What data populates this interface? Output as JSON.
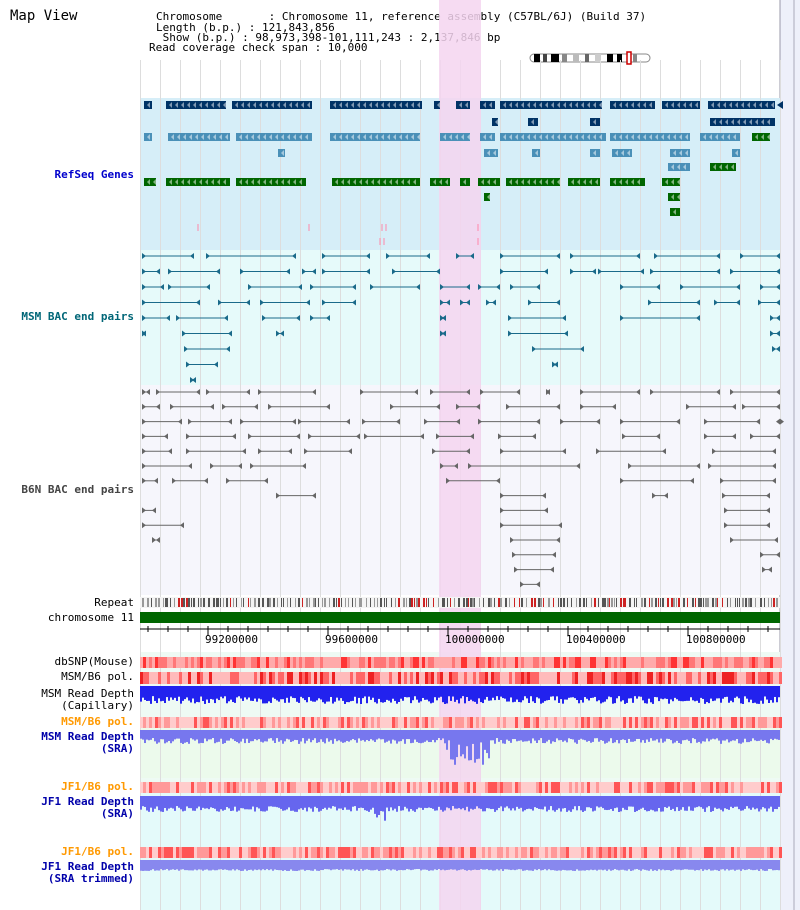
{
  "app": {
    "title": "Map View"
  },
  "header": {
    "chromosome_line": "Chromosome       : Chromosome 11, reference assembly (C57BL/6J) (Build 37)",
    "length_line": "Length (b.p.) : 121,843,856",
    "show_line": " Show (b.p.) : 98,973,398-101,111,243 : 2,137,846 bp",
    "coverage_line": "Read coverage check span : 10,000"
  },
  "tracks": {
    "refseq": "RefSeq Genes",
    "msm_bac": "MSM BAC end pairs",
    "b6n_bac": "B6N BAC end pairs",
    "repeat": "Repeat",
    "chromosome": "chromosome 11",
    "dbsnp": "dbSNP(Mouse)",
    "msm_pol1": "MSM/B6 pol.",
    "msm_depth_cap_1": "MSM Read Depth",
    "msm_depth_cap_2": "(Capillary)",
    "msm_pol2": "MSM/B6 pol.",
    "msm_depth_sra_1": "MSM Read Depth",
    "msm_depth_sra_2": "(SRA)",
    "jf1_pol1": "JF1/B6 pol.",
    "jf1_depth_sra_1": "JF1 Read Depth",
    "jf1_depth_sra_2": "(SRA)",
    "jf1_pol2": "JF1/B6 pol.",
    "jf1_depth_trim_1": "JF1 Read Depth",
    "jf1_depth_trim_2": "(SRA trimmed)"
  },
  "axis": {
    "ticks": [
      "99200000",
      "99600000",
      "100000000",
      "100400000",
      "100800000"
    ]
  },
  "colors": {
    "highlight": "#f5d5f0",
    "refseq_bg": "#d6eef8",
    "msm_bg": "#e6fafa",
    "b6n_bg": "#f6f6fc",
    "gene_dark": "#003366",
    "gene_mid": "#4a90b8",
    "gene_green": "#006600",
    "msm_line": "#1a6a8a",
    "b6n_line": "#666666",
    "chromosome_bar": "#006600",
    "snp_red": "#ff4444",
    "depth_blue": "#2222ee",
    "depth_light": "#7777ff"
  }
}
